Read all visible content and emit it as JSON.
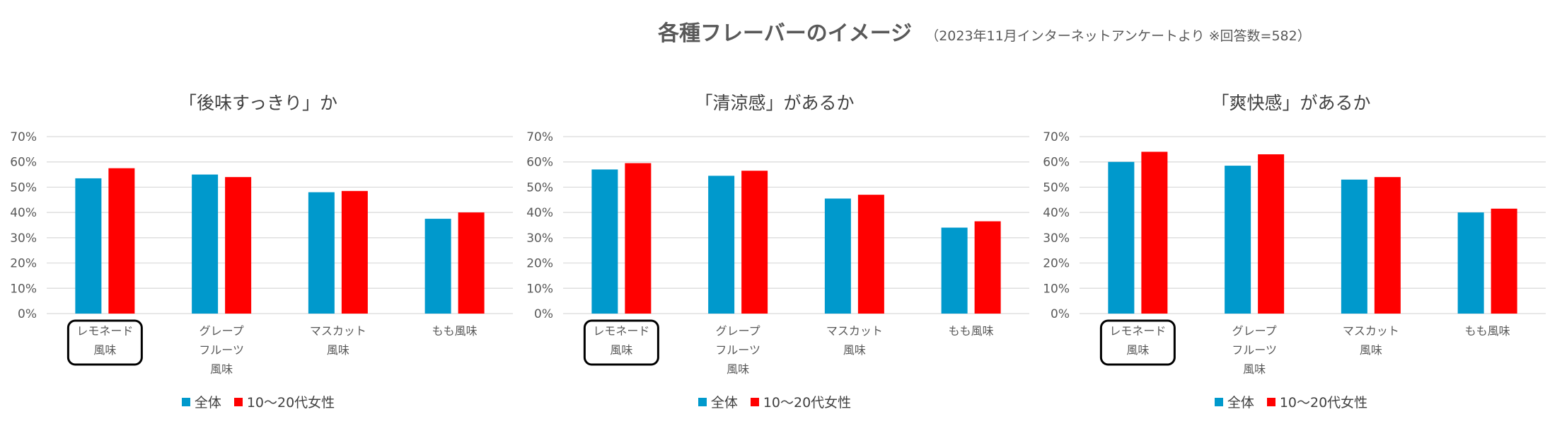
{
  "header": {
    "title": "各種フレーバーのイメージ",
    "subtitle": "（2023年11月インターネットアンケートより ※回答数=582）"
  },
  "colors": {
    "overall": "#0099CC",
    "women": "#FF0000",
    "grid": "#D9D9D9"
  },
  "chart_data": [
    {
      "type": "bar",
      "title": "「後味すっきり」か",
      "categories": [
        [
          "レモネード",
          "風味"
        ],
        [
          "グレープ",
          "フルーツ",
          "風味"
        ],
        [
          "マスカット",
          "風味"
        ],
        [
          "もも風味"
        ]
      ],
      "highlight_index": 0,
      "series": [
        {
          "name": "全体",
          "values": [
            53.5,
            55,
            48,
            37.5
          ]
        },
        {
          "name": "10～20代女性",
          "values": [
            57.5,
            54,
            48.5,
            40
          ]
        }
      ],
      "yticks": [
        "0%",
        "10%",
        "20%",
        "30%",
        "40%",
        "50%",
        "60%",
        "70%"
      ],
      "ylim": [
        0,
        70
      ],
      "legend": "bottom"
    },
    {
      "type": "bar",
      "title": "「清涼感」があるか",
      "categories": [
        [
          "レモネード",
          "風味"
        ],
        [
          "グレープ",
          "フルーツ",
          "風味"
        ],
        [
          "マスカット",
          "風味"
        ],
        [
          "もも風味"
        ]
      ],
      "highlight_index": 0,
      "series": [
        {
          "name": "全体",
          "values": [
            57,
            54.5,
            45.5,
            34
          ]
        },
        {
          "name": "10～20代女性",
          "values": [
            59.5,
            56.5,
            47,
            36.5
          ]
        }
      ],
      "yticks": [
        "0%",
        "10%",
        "20%",
        "30%",
        "40%",
        "50%",
        "60%",
        "70%"
      ],
      "ylim": [
        0,
        70
      ],
      "legend": "bottom"
    },
    {
      "type": "bar",
      "title": "「爽快感」があるか",
      "categories": [
        [
          "レモネード",
          "風味"
        ],
        [
          "グレープ",
          "フルーツ",
          "風味"
        ],
        [
          "マスカット",
          "風味"
        ],
        [
          "もも風味"
        ]
      ],
      "highlight_index": 0,
      "series": [
        {
          "name": "全体",
          "values": [
            60,
            58.5,
            53,
            40
          ]
        },
        {
          "name": "10～20代女性",
          "values": [
            64,
            63,
            54,
            41.5
          ]
        }
      ],
      "yticks": [
        "0%",
        "10%",
        "20%",
        "30%",
        "40%",
        "50%",
        "60%",
        "70%"
      ],
      "ylim": [
        0,
        70
      ],
      "legend": "bottom"
    }
  ]
}
